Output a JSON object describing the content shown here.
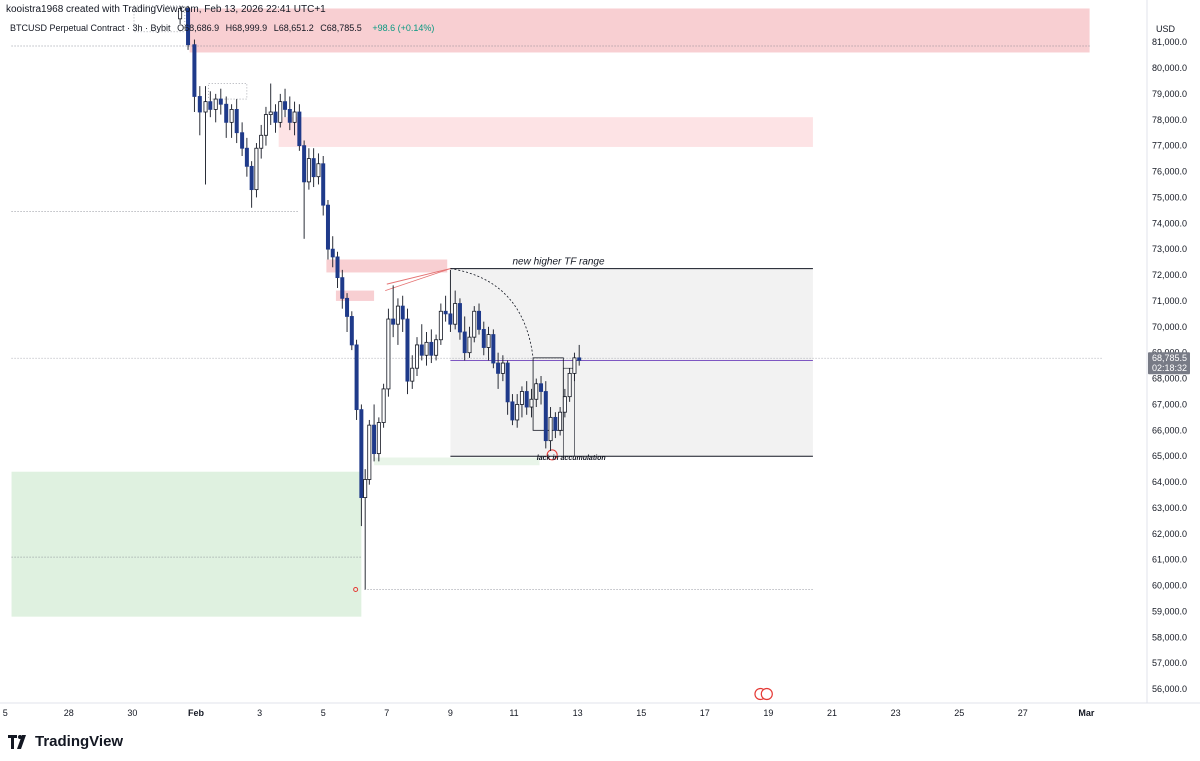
{
  "header": {
    "created_by": "kooistra1968 created with TradingView.com, Feb 13, 2026 22:41 UTC+1"
  },
  "symbol": {
    "name": "BTCUSD Perpetual Contract · 3h · Bybit",
    "open": "O68,686.9",
    "high": "H68,999.9",
    "low": "L68,651.2",
    "close": "C68,785.5",
    "change": "+98.6 (+0.14%)"
  },
  "price_axis": {
    "currency": "USD"
  },
  "last_price": {
    "value": "68,785.5",
    "countdown": "02:18:32"
  },
  "brand": {
    "name": "TradingView"
  },
  "colors": {
    "up": "#ffffff",
    "down": "#1f3a8a",
    "supply_zone": "#f8cfd2",
    "supply_zone_light": "#fde3e5",
    "demand_zone": "#dff1e0",
    "range_box": "#f2f2f2",
    "accent": "#131722"
  },
  "chart_data": {
    "type": "candlestick",
    "ylim": [
      55500,
      82500
    ],
    "y_ticks": [
      "81,000.0",
      "80,000.0",
      "79,000.0",
      "78,000.0",
      "77,000.0",
      "76,000.0",
      "75,000.0",
      "74,000.0",
      "73,000.0",
      "72,000.0",
      "71,000.0",
      "70,000.0",
      "69,000.0",
      "68,000.0",
      "67,000.0",
      "66,000.0",
      "65,000.0",
      "64,000.0",
      "63,000.0",
      "62,000.0",
      "61,000.0",
      "60,000.0",
      "59,000.0",
      "58,000.0",
      "57,000.0",
      "56,000.0"
    ],
    "x_ticks": [
      "5",
      "28",
      "30",
      "Feb",
      "3",
      "5",
      "7",
      "9",
      "11",
      "13",
      "15",
      "17",
      "19",
      "21",
      "23",
      "25",
      "27",
      "Mar"
    ],
    "x_tick_days": [
      -6,
      -4,
      -2,
      0,
      2,
      4,
      6,
      8,
      10,
      12,
      14,
      16,
      18,
      20,
      22,
      24,
      26,
      28
    ],
    "annotations": [
      {
        "text": "new higher TF range",
        "day": 11.4,
        "price": 72400
      },
      {
        "text": "lack in accumulation",
        "day": 11.8,
        "price": 64850
      }
    ],
    "zones": [
      {
        "kind": "supply",
        "day_start": -0.2,
        "day_end": 28.1,
        "top": 82300,
        "bottom": 80600
      },
      {
        "kind": "supply_light",
        "day_start": 2.6,
        "day_end": 19.4,
        "top": 78100,
        "bottom": 76950
      },
      {
        "kind": "supply",
        "day_start": 4.1,
        "day_end": 7.9,
        "top": 72600,
        "bottom": 72100
      },
      {
        "kind": "supply",
        "day_start": 4.4,
        "day_end": 5.6,
        "top": 71400,
        "bottom": 71000
      },
      {
        "kind": "demand",
        "day_start": -5.8,
        "day_end": 5.2,
        "top": 64400,
        "bottom": 58800
      },
      {
        "kind": "demand_light",
        "day_start": 5.6,
        "day_end": 10.8,
        "top": 64950,
        "bottom": 64650
      },
      {
        "kind": "range",
        "day_start": 8.0,
        "day_end": 19.4,
        "top": 72250,
        "bottom": 65000
      }
    ],
    "levels": [
      {
        "price": 80850,
        "day_start": -5.8,
        "day_end": 28.1
      },
      {
        "price": 74450,
        "day_start": -5.8,
        "day_end": 3.2
      },
      {
        "price": 61100,
        "day_start": -5.8,
        "day_end": 5.2
      },
      {
        "price": 59850,
        "day_start": 5.3,
        "day_end": 19.4
      },
      {
        "price": 68785.5,
        "day_start": -5.8,
        "day_end": 28.5
      }
    ],
    "candles": [
      {
        "day": -0.5,
        "o": 81900,
        "h": 82400,
        "l": 81700,
        "c": 82300
      },
      {
        "day": -0.25,
        "o": 82300,
        "h": 82400,
        "l": 80700,
        "c": 80900
      },
      {
        "day": -0.05,
        "o": 80900,
        "h": 81100,
        "l": 78300,
        "c": 78900
      },
      {
        "day": 0.12,
        "o": 78900,
        "h": 79300,
        "l": 77400,
        "c": 78300
      },
      {
        "day": 0.3,
        "o": 78300,
        "h": 79300,
        "l": 75500,
        "c": 78700
      },
      {
        "day": 0.45,
        "o": 78700,
        "h": 79100,
        "l": 78100,
        "c": 78400
      },
      {
        "day": 0.62,
        "o": 78400,
        "h": 79000,
        "l": 77900,
        "c": 78800
      },
      {
        "day": 0.78,
        "o": 78800,
        "h": 79200,
        "l": 78200,
        "c": 78600
      },
      {
        "day": 0.95,
        "o": 78600,
        "h": 78900,
        "l": 77300,
        "c": 77900
      },
      {
        "day": 1.12,
        "o": 77900,
        "h": 78600,
        "l": 77300,
        "c": 78400
      },
      {
        "day": 1.28,
        "o": 78400,
        "h": 78800,
        "l": 77100,
        "c": 77500
      },
      {
        "day": 1.45,
        "o": 77500,
        "h": 77900,
        "l": 76600,
        "c": 76900
      },
      {
        "day": 1.6,
        "o": 76900,
        "h": 77300,
        "l": 75800,
        "c": 76200
      },
      {
        "day": 1.75,
        "o": 76200,
        "h": 76400,
        "l": 74600,
        "c": 75300
      },
      {
        "day": 1.9,
        "o": 75300,
        "h": 77100,
        "l": 75000,
        "c": 76900
      },
      {
        "day": 2.05,
        "o": 76900,
        "h": 77800,
        "l": 76500,
        "c": 77400
      },
      {
        "day": 2.2,
        "o": 77400,
        "h": 78500,
        "l": 77000,
        "c": 78200
      },
      {
        "day": 2.35,
        "o": 78200,
        "h": 79400,
        "l": 77800,
        "c": 78300
      },
      {
        "day": 2.5,
        "o": 78300,
        "h": 78600,
        "l": 77500,
        "c": 77900
      },
      {
        "day": 2.65,
        "o": 77900,
        "h": 79000,
        "l": 77700,
        "c": 78700
      },
      {
        "day": 2.8,
        "o": 78700,
        "h": 79200,
        "l": 78100,
        "c": 78400
      },
      {
        "day": 2.95,
        "o": 78400,
        "h": 78900,
        "l": 77600,
        "c": 77900
      },
      {
        "day": 3.1,
        "o": 77900,
        "h": 78700,
        "l": 77400,
        "c": 78300
      },
      {
        "day": 3.25,
        "o": 78300,
        "h": 78600,
        "l": 76800,
        "c": 77000
      },
      {
        "day": 3.4,
        "o": 77000,
        "h": 77200,
        "l": 73400,
        "c": 75600
      },
      {
        "day": 3.55,
        "o": 75600,
        "h": 76900,
        "l": 75300,
        "c": 76500
      },
      {
        "day": 3.7,
        "o": 76500,
        "h": 76900,
        "l": 75400,
        "c": 75800
      },
      {
        "day": 3.85,
        "o": 75800,
        "h": 76700,
        "l": 75500,
        "c": 76300
      },
      {
        "day": 4.0,
        "o": 76300,
        "h": 76600,
        "l": 74300,
        "c": 74700
      },
      {
        "day": 4.15,
        "o": 74700,
        "h": 74900,
        "l": 72600,
        "c": 73000
      },
      {
        "day": 4.3,
        "o": 73000,
        "h": 73500,
        "l": 72300,
        "c": 72700
      },
      {
        "day": 4.45,
        "o": 72700,
        "h": 72900,
        "l": 71500,
        "c": 71900
      },
      {
        "day": 4.6,
        "o": 71900,
        "h": 72200,
        "l": 70700,
        "c": 71100
      },
      {
        "day": 4.75,
        "o": 71100,
        "h": 71300,
        "l": 69800,
        "c": 70400
      },
      {
        "day": 4.9,
        "o": 70400,
        "h": 70600,
        "l": 69100,
        "c": 69300
      },
      {
        "day": 5.05,
        "o": 69300,
        "h": 69500,
        "l": 66400,
        "c": 66800
      },
      {
        "day": 5.2,
        "o": 66800,
        "h": 67000,
        "l": 62300,
        "c": 63400
      },
      {
        "day": 5.32,
        "o": 63400,
        "h": 64500,
        "l": 59850,
        "c": 64100
      },
      {
        "day": 5.45,
        "o": 64100,
        "h": 66400,
        "l": 63900,
        "c": 66200
      },
      {
        "day": 5.6,
        "o": 66200,
        "h": 67000,
        "l": 64800,
        "c": 65100
      },
      {
        "day": 5.75,
        "o": 65100,
        "h": 66500,
        "l": 64800,
        "c": 66300
      },
      {
        "day": 5.9,
        "o": 66300,
        "h": 67800,
        "l": 66100,
        "c": 67600
      },
      {
        "day": 6.05,
        "o": 67600,
        "h": 70700,
        "l": 67300,
        "c": 70300
      },
      {
        "day": 6.2,
        "o": 70300,
        "h": 71600,
        "l": 69600,
        "c": 70100
      },
      {
        "day": 6.35,
        "o": 70100,
        "h": 71100,
        "l": 69300,
        "c": 70800
      },
      {
        "day": 6.5,
        "o": 70800,
        "h": 71200,
        "l": 69800,
        "c": 70300
      },
      {
        "day": 6.65,
        "o": 70300,
        "h": 70700,
        "l": 67400,
        "c": 67900
      },
      {
        "day": 6.8,
        "o": 67900,
        "h": 68900,
        "l": 67600,
        "c": 68400
      },
      {
        "day": 6.95,
        "o": 68400,
        "h": 69600,
        "l": 68100,
        "c": 69300
      },
      {
        "day": 7.1,
        "o": 69300,
        "h": 70100,
        "l": 68700,
        "c": 68900
      },
      {
        "day": 7.25,
        "o": 68900,
        "h": 69800,
        "l": 68500,
        "c": 69400
      },
      {
        "day": 7.4,
        "o": 69400,
        "h": 69900,
        "l": 68600,
        "c": 68900
      },
      {
        "day": 7.55,
        "o": 68900,
        "h": 69700,
        "l": 68700,
        "c": 69500
      },
      {
        "day": 7.7,
        "o": 69500,
        "h": 70900,
        "l": 69300,
        "c": 70600
      },
      {
        "day": 7.85,
        "o": 70600,
        "h": 71200,
        "l": 70200,
        "c": 70500
      },
      {
        "day": 8.0,
        "o": 70500,
        "h": 72200,
        "l": 69800,
        "c": 70100
      },
      {
        "day": 8.15,
        "o": 70100,
        "h": 71400,
        "l": 69900,
        "c": 70900
      },
      {
        "day": 8.3,
        "o": 70900,
        "h": 71100,
        "l": 69500,
        "c": 69800
      },
      {
        "day": 8.45,
        "o": 69800,
        "h": 70400,
        "l": 68700,
        "c": 69000
      },
      {
        "day": 8.6,
        "o": 69000,
        "h": 70000,
        "l": 68800,
        "c": 69600
      },
      {
        "day": 8.75,
        "o": 69600,
        "h": 70800,
        "l": 69400,
        "c": 70600
      },
      {
        "day": 8.9,
        "o": 70600,
        "h": 70900,
        "l": 69700,
        "c": 69900
      },
      {
        "day": 9.05,
        "o": 69900,
        "h": 70200,
        "l": 68900,
        "c": 69200
      },
      {
        "day": 9.2,
        "o": 69200,
        "h": 70000,
        "l": 68700,
        "c": 69700
      },
      {
        "day": 9.35,
        "o": 69700,
        "h": 69900,
        "l": 68400,
        "c": 68600
      },
      {
        "day": 9.5,
        "o": 68600,
        "h": 69000,
        "l": 67600,
        "c": 68200
      },
      {
        "day": 9.65,
        "o": 68200,
        "h": 68900,
        "l": 67900,
        "c": 68600
      },
      {
        "day": 9.8,
        "o": 68600,
        "h": 68700,
        "l": 66600,
        "c": 67100
      },
      {
        "day": 9.95,
        "o": 67100,
        "h": 67400,
        "l": 66200,
        "c": 66400
      },
      {
        "day": 10.1,
        "o": 66400,
        "h": 67400,
        "l": 66100,
        "c": 67000
      },
      {
        "day": 10.25,
        "o": 67000,
        "h": 67700,
        "l": 66500,
        "c": 67500
      },
      {
        "day": 10.4,
        "o": 67500,
        "h": 67900,
        "l": 66600,
        "c": 66900
      },
      {
        "day": 10.55,
        "o": 66900,
        "h": 67600,
        "l": 66500,
        "c": 67200
      },
      {
        "day": 10.7,
        "o": 67200,
        "h": 68000,
        "l": 66900,
        "c": 67800
      },
      {
        "day": 10.85,
        "o": 67800,
        "h": 68100,
        "l": 67000,
        "c": 67500
      },
      {
        "day": 11.0,
        "o": 67500,
        "h": 67900,
        "l": 65300,
        "c": 65600
      },
      {
        "day": 11.15,
        "o": 65600,
        "h": 66900,
        "l": 65200,
        "c": 66500
      },
      {
        "day": 11.3,
        "o": 66500,
        "h": 66700,
        "l": 65700,
        "c": 66000
      },
      {
        "day": 11.45,
        "o": 66000,
        "h": 66900,
        "l": 65800,
        "c": 66700
      },
      {
        "day": 11.6,
        "o": 66700,
        "h": 67600,
        "l": 66500,
        "c": 67300
      },
      {
        "day": 11.75,
        "o": 67300,
        "h": 68400,
        "l": 67100,
        "c": 68200
      },
      {
        "day": 11.9,
        "o": 68200,
        "h": 69000,
        "l": 67900,
        "c": 68800
      },
      {
        "day": 12.05,
        "o": 68800,
        "h": 69300,
        "l": 68500,
        "c": 68700
      }
    ]
  }
}
